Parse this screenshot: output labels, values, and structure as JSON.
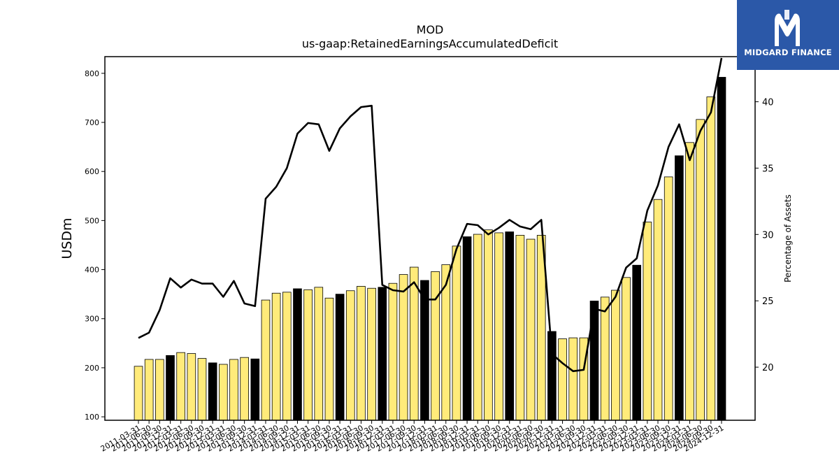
{
  "brand": {
    "name": "MIDGARD FINANCE",
    "logo_icon": "midgard-m-logo-icon",
    "background": "#2b58a8"
  },
  "chart_data": {
    "type": "bar",
    "title": "MOD",
    "subtitle": "us-gaap:RetainedEarningsAccumulatedDeficit",
    "ylabel": "USDm",
    "ylabel_right": "Percentage of Assets",
    "ylim": [
      93,
      834
    ],
    "ylim_right": [
      16.0,
      43.4
    ],
    "yticks": [
      100,
      200,
      300,
      400,
      500,
      600,
      700,
      800
    ],
    "yticks_right": [
      20,
      25,
      30,
      35,
      40
    ],
    "grid": false,
    "colors": {
      "bar": "#ffeb7a",
      "bar_highlight": "#000000",
      "line": "#000000"
    },
    "categories": [
      "2011-03-31",
      "2011-06-30",
      "2011-09-30",
      "2011-12-31",
      "2012-03-31",
      "2012-06-30",
      "2012-09-30",
      "2012-12-31",
      "2013-03-31",
      "2013-06-30",
      "2013-09-30",
      "2013-12-31",
      "2014-03-31",
      "2014-06-30",
      "2014-09-30",
      "2014-12-31",
      "2015-03-31",
      "2015-06-30",
      "2015-09-30",
      "2015-12-31",
      "2016-03-31",
      "2016-06-30",
      "2016-09-30",
      "2016-12-31",
      "2017-03-31",
      "2017-06-30",
      "2017-09-30",
      "2017-12-31",
      "2018-03-31",
      "2018-06-30",
      "2018-09-30",
      "2018-12-31",
      "2019-03-31",
      "2019-06-30",
      "2019-09-30",
      "2019-12-31",
      "2020-03-31",
      "2020-06-30",
      "2020-09-30",
      "2020-12-31",
      "2021-03-31",
      "2021-06-30",
      "2021-09-30",
      "2021-12-31",
      "2022-03-31",
      "2022-06-30",
      "2022-09-30",
      "2022-12-31",
      "2023-03-31",
      "2023-06-30",
      "2023-09-30",
      "2023-12-31",
      "2024-03-31",
      "2024-06-30",
      "2024-09-30",
      "2024-12-31"
    ],
    "series": [
      {
        "type": "bar",
        "axis": "left",
        "values": [
          203,
          217,
          217,
          225,
          231,
          229,
          219,
          210,
          207,
          217,
          221,
          218,
          338,
          352,
          354,
          361,
          359,
          364,
          342,
          350,
          357,
          366,
          362,
          364,
          372,
          390,
          405,
          378,
          396,
          410,
          448,
          467,
          472,
          481,
          475,
          477,
          470,
          462,
          470,
          274,
          259,
          261,
          261,
          336,
          344,
          358,
          384,
          409,
          497,
          543,
          589,
          632,
          659,
          706,
          752,
          792
        ],
        "highlight": [
          false,
          false,
          false,
          true,
          false,
          false,
          false,
          true,
          false,
          false,
          false,
          true,
          false,
          false,
          false,
          true,
          false,
          false,
          false,
          true,
          false,
          false,
          false,
          true,
          false,
          false,
          false,
          true,
          false,
          false,
          false,
          true,
          false,
          false,
          false,
          true,
          false,
          false,
          false,
          true,
          false,
          false,
          false,
          true,
          false,
          false,
          false,
          true,
          false,
          false,
          false,
          true,
          false,
          false,
          false,
          true
        ]
      },
      {
        "type": "line",
        "axis": "right",
        "values": [
          22.2,
          22.6,
          24.3,
          26.7,
          26.0,
          26.6,
          26.3,
          26.3,
          25.3,
          26.5,
          24.8,
          24.6,
          32.7,
          33.6,
          35.0,
          37.6,
          38.4,
          38.3,
          36.3,
          38.0,
          38.9,
          39.6,
          39.7,
          26.2,
          25.8,
          25.7,
          26.4,
          25.1,
          25.1,
          26.2,
          28.9,
          30.8,
          30.7,
          30.0,
          30.5,
          31.1,
          30.6,
          30.4,
          31.1,
          21.0,
          20.3,
          19.7,
          19.8,
          24.4,
          24.2,
          25.3,
          27.5,
          28.2,
          31.8,
          33.7,
          36.6,
          38.3,
          35.6,
          37.8,
          39.2,
          43.3
        ]
      }
    ]
  }
}
